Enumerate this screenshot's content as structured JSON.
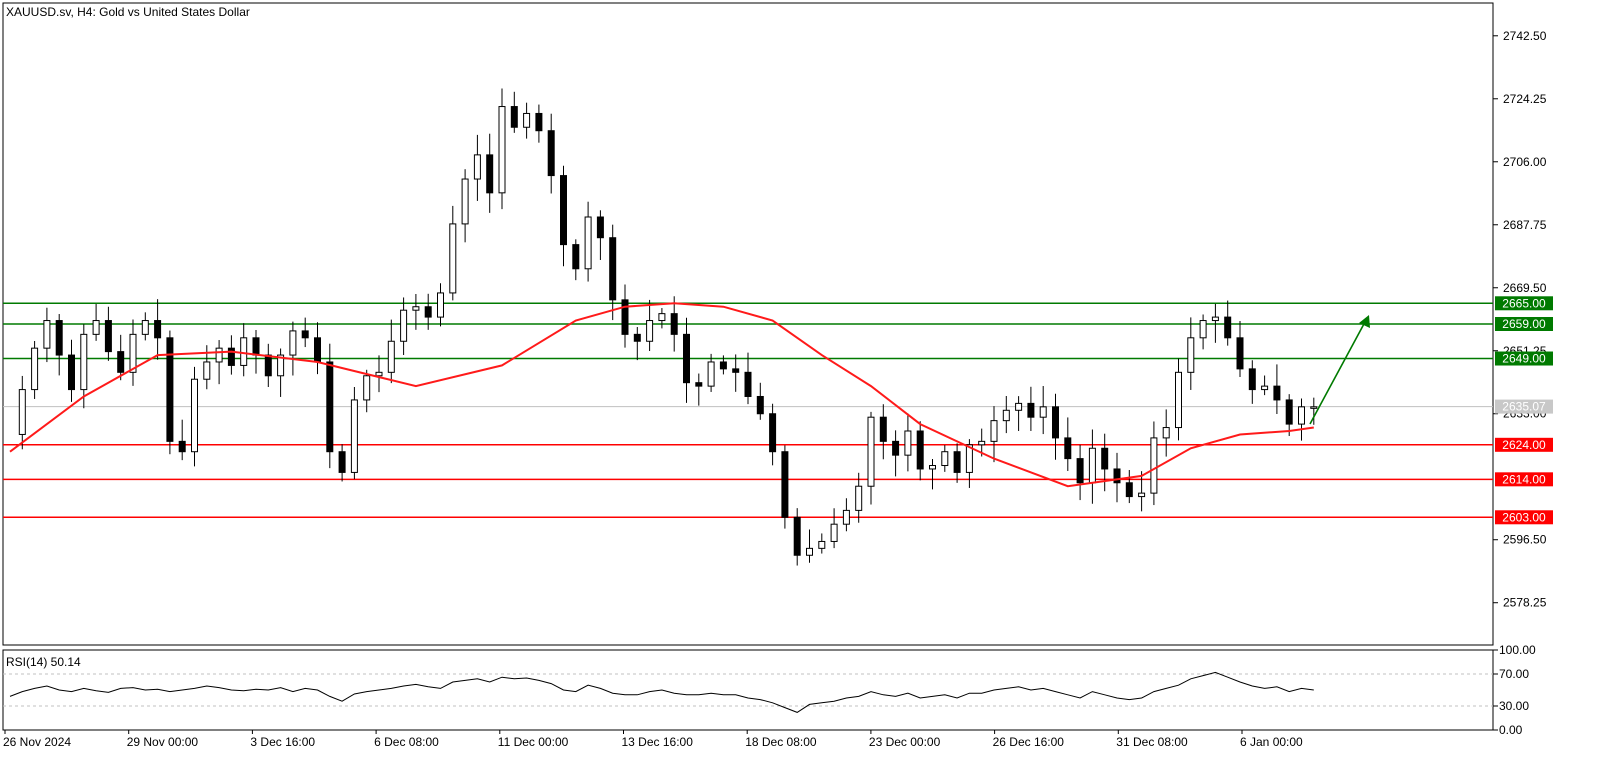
{
  "header": {
    "symbol_title": "XAUUSD.sv, H4:  Gold vs United States Dollar"
  },
  "colors": {
    "candle": "#000000",
    "ma": "#ff1a1a",
    "support": "#ff0000",
    "resistance": "#007a00",
    "grid": "#c0c0c0",
    "current_price_tag": "#c8c8c8",
    "rsi_line": "#000000"
  },
  "chart_data": [
    {
      "type": "candlestick",
      "title": "XAUUSD.sv, H4:  Gold vs United States Dollar",
      "ylim": [
        2566,
        2752
      ],
      "y_ticks": [
        "2742.50",
        "2724.25",
        "2706.00",
        "2687.75",
        "2669.50",
        "2651.25",
        "2633.00",
        "2596.50",
        "2578.25"
      ],
      "x_ticks": [
        "26 Nov 2024",
        "29 Nov 00:00",
        "3 Dec 16:00",
        "6 Dec 08:00",
        "11 Dec 00:00",
        "13 Dec 16:00",
        "18 Dec 08:00",
        "23 Dec 00:00",
        "26 Dec 16:00",
        "31 Dec 08:00",
        "6 Jan 00:00"
      ],
      "current_price": "2635.07",
      "resistance_levels": [
        {
          "label": "2665.00",
          "value": 2665.0
        },
        {
          "label": "2659.00",
          "value": 2659.0
        },
        {
          "label": "2649.00",
          "value": 2649.0
        }
      ],
      "support_levels": [
        {
          "label": "2624.00",
          "value": 2624.0
        },
        {
          "label": "2614.00",
          "value": 2614.0
        },
        {
          "label": "2603.00",
          "value": 2603.0
        }
      ],
      "close_path": [
        2627,
        2640,
        2652,
        2660,
        2650,
        2640,
        2656,
        2660,
        2651,
        2645,
        2656,
        2660,
        2655,
        2625,
        2622,
        2643,
        2648,
        2652,
        2647,
        2655,
        2650,
        2644,
        2650,
        2657,
        2655,
        2648,
        2622,
        2616,
        2637,
        2644,
        2645,
        2654,
        2663,
        2664,
        2661,
        2668,
        2688,
        2701,
        2708,
        2697,
        2722,
        2716,
        2720,
        2715,
        2702,
        2682,
        2675,
        2690,
        2684,
        2666,
        2656,
        2654,
        2660,
        2662,
        2656,
        2642,
        2641,
        2648,
        2646,
        2645,
        2638,
        2633,
        2622,
        2603,
        2592,
        2594,
        2596,
        2601,
        2605,
        2612,
        2632,
        2625,
        2621,
        2628,
        2617,
        2618,
        2622,
        2616,
        2624,
        2625,
        2631,
        2634,
        2636,
        2632,
        2635,
        2626,
        2620,
        2613,
        2623,
        2617,
        2613,
        2609,
        2610,
        2626,
        2629,
        2645,
        2655,
        2660,
        2661,
        2655,
        2646,
        2640,
        2641,
        2637,
        2630,
        2635,
        2635
      ],
      "moving_average": {
        "name": "MA",
        "x_index": [
          0,
          6,
          12,
          18,
          25,
          33,
          40,
          46,
          50,
          54,
          58,
          62,
          66,
          70,
          74,
          80,
          86,
          92,
          96,
          100,
          104,
          106
        ],
        "values": [
          2622,
          2638,
          2650,
          2651,
          2648,
          2641,
          2647,
          2660,
          2664,
          2665,
          2664,
          2660,
          2650,
          2641,
          2630,
          2620,
          2612,
          2615,
          2623,
          2627,
          2628,
          2629
        ]
      }
    },
    {
      "type": "line",
      "title": "RSI(14) 50.14",
      "ylim": [
        0,
        100
      ],
      "y_ticks": [
        "100.00",
        "70.00",
        "30.00",
        "0.00"
      ],
      "reference_levels": [
        70,
        30
      ],
      "x_index_max": 106,
      "values": [
        42,
        48,
        52,
        55,
        50,
        48,
        52,
        49,
        47,
        52,
        53,
        50,
        51,
        48,
        50,
        52,
        55,
        53,
        50,
        49,
        51,
        50,
        53,
        48,
        52,
        50,
        42,
        36,
        45,
        48,
        50,
        52,
        55,
        57,
        54,
        52,
        60,
        62,
        64,
        60,
        66,
        64,
        65,
        62,
        58,
        50,
        48,
        56,
        52,
        46,
        44,
        44,
        48,
        50,
        46,
        44,
        44,
        46,
        44,
        44,
        40,
        38,
        34,
        28,
        22,
        32,
        34,
        36,
        40,
        42,
        48,
        44,
        42,
        46,
        40,
        42,
        44,
        40,
        46,
        46,
        50,
        52,
        54,
        50,
        52,
        48,
        44,
        40,
        48,
        44,
        40,
        38,
        40,
        48,
        52,
        56,
        64,
        68,
        72,
        66,
        60,
        55,
        52,
        54,
        48,
        52,
        50
      ]
    }
  ]
}
